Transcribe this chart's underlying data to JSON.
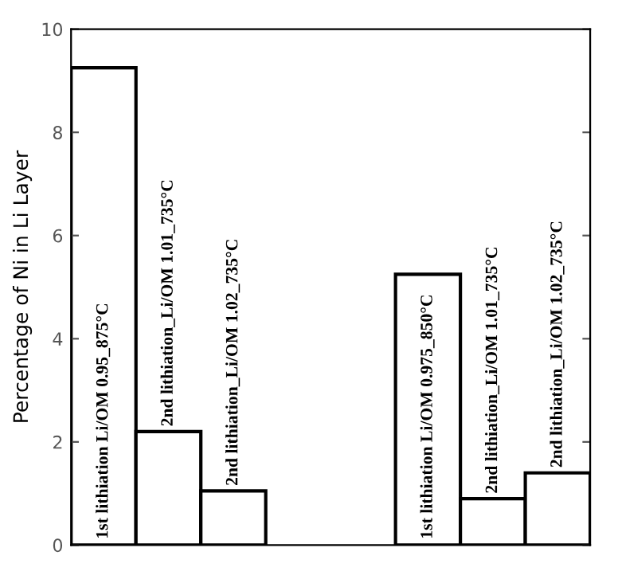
{
  "chart_data": {
    "type": "bar",
    "ylabel": "Percentage of Ni in Li Layer",
    "categories": [
      "1st lithiation Li/OM 0.95_875°C",
      "2nd lithiation_Li/OM 1.01_735°C",
      "2nd lithiation_Li/OM 1.02_735°C",
      null,
      null,
      "1st lithiation Li/OM 0.975_850°C",
      "2nd lithiation_Li/OM 1.01_735°C",
      "2nd lithiation_Li/OM 1.02_735°C"
    ],
    "values": [
      9.25,
      2.2,
      1.05,
      null,
      null,
      5.25,
      0.9,
      1.4
    ],
    "color": "#ffffff",
    "ylim": [
      0,
      10
    ],
    "yticks": [
      0,
      2,
      4,
      6,
      8,
      10
    ],
    "grid": false
  }
}
